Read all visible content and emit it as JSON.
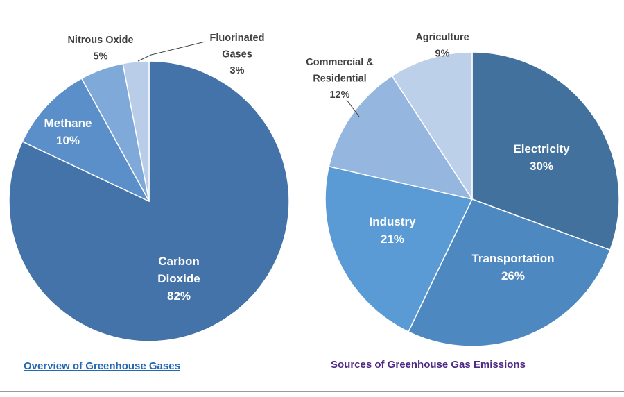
{
  "links": {
    "left": "Overview of Greenhouse Gases",
    "right": "Sources of Greenhouse Gas Emissions"
  },
  "chart_data": [
    {
      "type": "pie",
      "title": "",
      "slices": [
        {
          "label_lines": [
            "Carbon",
            "Dioxide"
          ],
          "pct_label": "82%",
          "value": 82,
          "color": "#4373a8",
          "label_style": "inside"
        },
        {
          "label_lines": [
            "Methane"
          ],
          "pct_label": "10%",
          "value": 10,
          "color": "#5a8fc9",
          "label_style": "inside"
        },
        {
          "label_lines": [
            "Nitrous Oxide"
          ],
          "pct_label": "5%",
          "value": 5,
          "color": "#7ea9d9",
          "label_style": "outside"
        },
        {
          "label_lines": [
            "Fluorinated",
            "Gases"
          ],
          "pct_label": "3%",
          "value": 3,
          "color": "#b9cde8",
          "label_style": "outside-leader"
        }
      ]
    },
    {
      "type": "pie",
      "title": "",
      "slices": [
        {
          "label_lines": [
            "Electricity"
          ],
          "pct_label": "30%",
          "value": 30,
          "color": "#41719c",
          "label_style": "inside"
        },
        {
          "label_lines": [
            "Transportation"
          ],
          "pct_label": "26%",
          "value": 26,
          "color": "#4e88c0",
          "label_style": "inside"
        },
        {
          "label_lines": [
            "Industry"
          ],
          "pct_label": "21%",
          "value": 21,
          "color": "#5b9bd5",
          "label_style": "inside"
        },
        {
          "label_lines": [
            "Commercial &",
            "Residential"
          ],
          "pct_label": "12%",
          "value": 12,
          "color": "#95b6de",
          "label_style": "outside-leader"
        },
        {
          "label_lines": [
            "Agriculture"
          ],
          "pct_label": "9%",
          "value": 9,
          "color": "#bdd0ea",
          "label_style": "outside"
        }
      ]
    }
  ]
}
